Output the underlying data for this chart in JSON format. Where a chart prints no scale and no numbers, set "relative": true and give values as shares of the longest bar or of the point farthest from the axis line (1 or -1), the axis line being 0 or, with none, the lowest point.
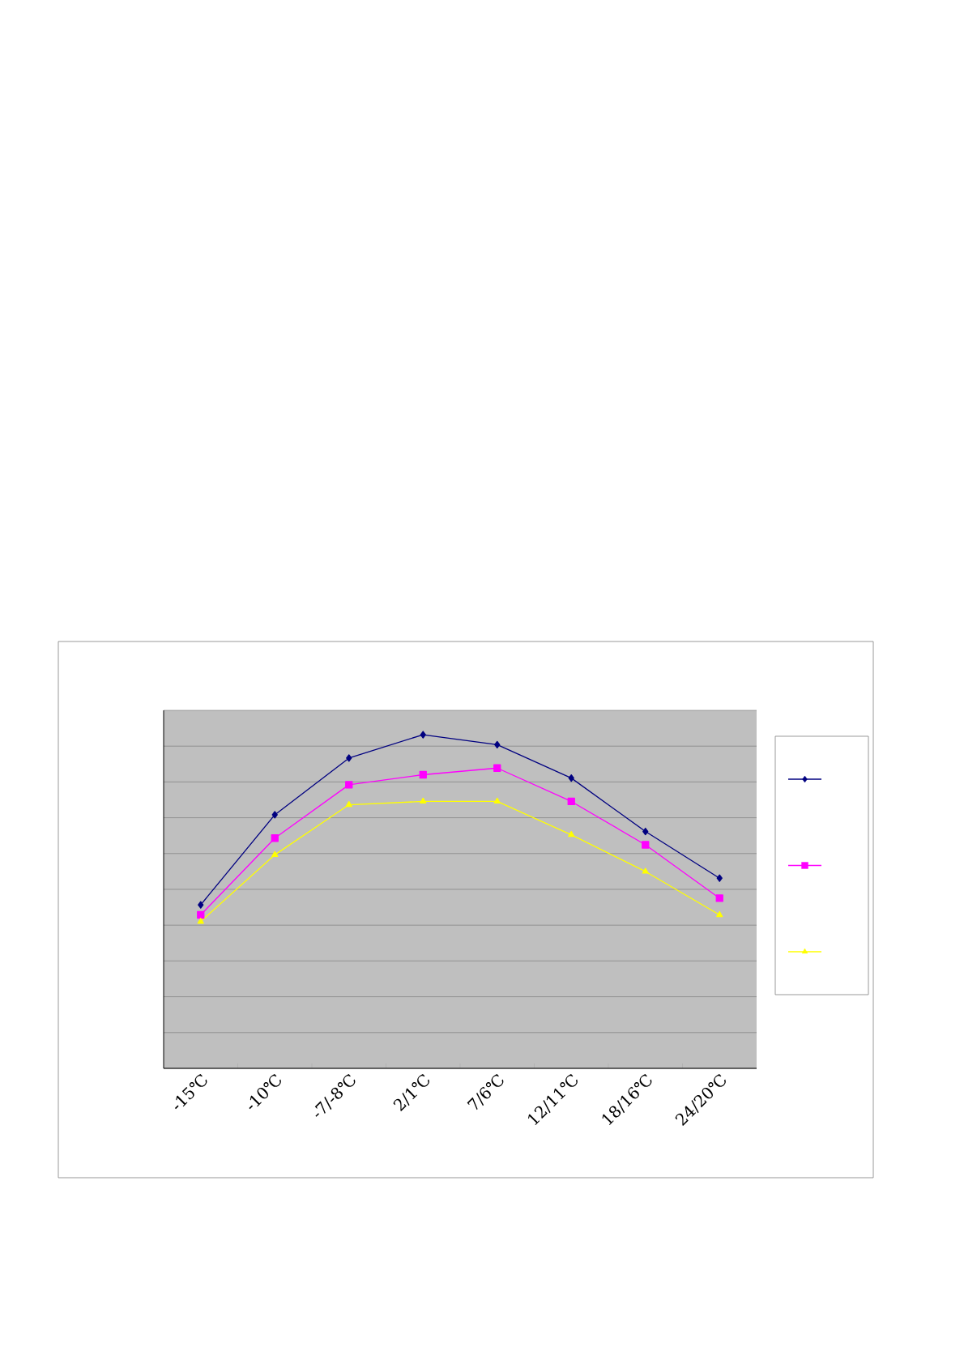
{
  "chart_data": {
    "type": "line",
    "relative": true,
    "categories": [
      "-15℃",
      "-10℃",
      "-7/-8℃",
      "2/1℃",
      "7/6℃",
      "12/11℃",
      "18/16℃",
      "24/20℃"
    ],
    "grid": "y",
    "series": [
      {
        "color": "#000080",
        "marker": "diamond",
        "values": [
          0.49,
          0.76,
          0.93,
          1,
          0.97,
          0.87,
          0.71,
          0.57
        ]
      },
      {
        "color": "#ff00ff",
        "marker": "square",
        "values": [
          0.46,
          0.69,
          0.85,
          0.88,
          0.9,
          0.8,
          0.67,
          0.51
        ]
      },
      {
        "color": "#ffff00",
        "marker": "triangle",
        "values": [
          0.44,
          0.64,
          0.79,
          0.8,
          0.8,
          0.7,
          0.59,
          0.46
        ]
      }
    ]
  }
}
